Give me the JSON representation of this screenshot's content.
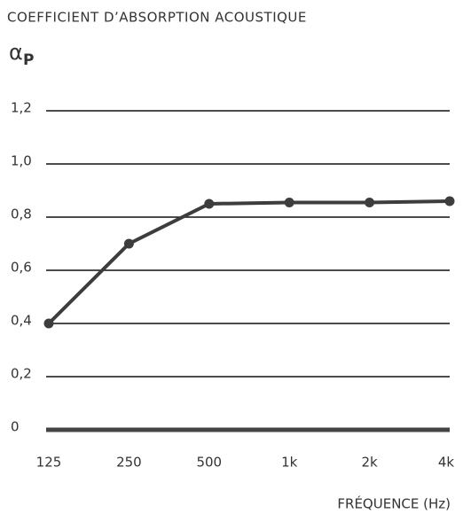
{
  "chart_data": {
    "type": "line",
    "title": "COEFFICIENT D’ABSORPTION ACOUSTIQUE",
    "y_label": "α",
    "y_label_subscript": "P",
    "x_label": "FRÉQUENCE (Hz)",
    "categories": [
      "125",
      "250",
      "500",
      "1k",
      "2k",
      "4k"
    ],
    "values": [
      0.4,
      0.7,
      0.85,
      0.855,
      0.855,
      0.86
    ],
    "color": "#3d3d3d",
    "ylim": [
      0,
      1.2
    ],
    "yticks": [
      0,
      {
        "value": 0.2,
        "label": "0,2"
      },
      {
        "value": 0.4,
        "label": "0,4"
      },
      {
        "value": 0.6,
        "label": "0,6"
      },
      {
        "value": 0.8,
        "label": "0,8"
      },
      {
        "value": 1.0,
        "label": "1,0"
      },
      {
        "value": 1.2,
        "label": "1,2"
      }
    ],
    "grid": true
  }
}
